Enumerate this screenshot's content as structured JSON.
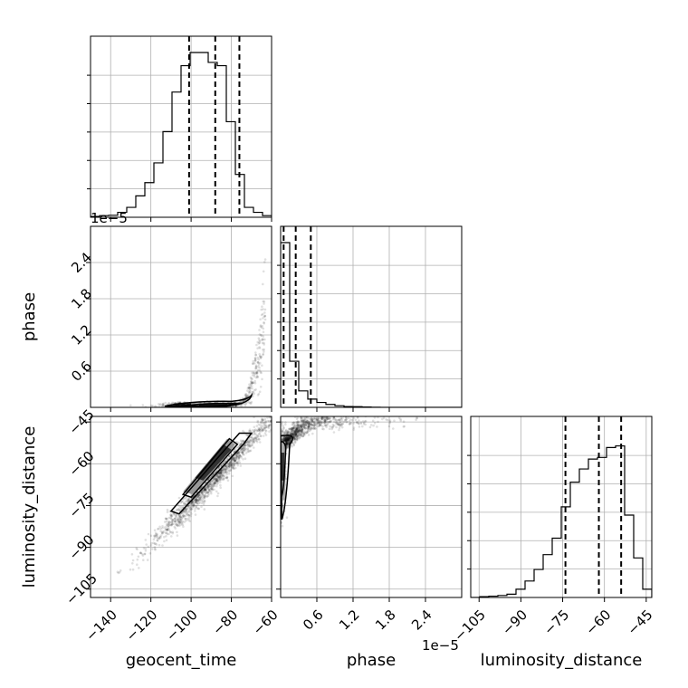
{
  "chart_data": {
    "type": "corner",
    "grid": true,
    "parameters": [
      "geocent_time",
      "phase",
      "luminosity_distance"
    ],
    "axes": {
      "geocent_time": {
        "label": "geocent_time",
        "range": [
          -150,
          -60
        ],
        "ticks": [
          -140,
          -120,
          -100,
          -80,
          -60
        ],
        "tick_labels": [
          "−140",
          "−120",
          "−100",
          "−80",
          "−60"
        ],
        "quantiles": [
          -101,
          -88,
          -76
        ]
      },
      "phase": {
        "label": "phase",
        "offset_text": "1e−5",
        "range": [
          0,
          3.0
        ],
        "ticks": [
          0.6,
          1.2,
          1.8,
          2.4
        ],
        "tick_labels": [
          "0.6",
          "1.2",
          "1.8",
          "2.4"
        ],
        "quantiles": [
          0.05,
          0.25,
          0.5
        ]
      },
      "luminosity_distance": {
        "label": "luminosity_distance",
        "range": [
          -108,
          -43
        ],
        "ticks": [
          -105,
          -90,
          -75,
          -60,
          -45
        ],
        "tick_labels": [
          "−105",
          "−90",
          "−75",
          "−60",
          "−45"
        ],
        "quantiles": [
          -74,
          -62,
          -54
        ]
      }
    },
    "histograms": {
      "geocent_time": {
        "bin_edges": [
          -150,
          -145.5,
          -141,
          -136.5,
          -132,
          -127.5,
          -123,
          -118.5,
          -114,
          -109.5,
          -105,
          -100.5,
          -96,
          -91.5,
          -87,
          -82.5,
          -78,
          -73.5,
          -69,
          -64.5,
          -60
        ],
        "counts": [
          0.005,
          0.01,
          0.012,
          0.03,
          0.06,
          0.13,
          0.21,
          0.33,
          0.52,
          0.76,
          0.92,
          1.0,
          1.0,
          0.94,
          0.92,
          0.58,
          0.26,
          0.06,
          0.03,
          0.01
        ]
      },
      "phase": {
        "bin_edges": [
          0,
          0.15,
          0.3,
          0.45,
          0.6,
          0.75,
          0.9,
          1.05,
          1.2,
          1.35,
          1.5,
          1.65,
          1.8,
          1.95,
          2.1,
          2.25,
          2.4,
          2.55,
          2.7,
          2.85,
          3.0
        ],
        "counts": [
          1.0,
          0.28,
          0.1,
          0.05,
          0.03,
          0.018,
          0.01,
          0.005,
          0.004,
          0.002,
          0.001,
          0,
          0,
          0,
          0,
          0,
          0,
          0,
          0,
          0
        ]
      },
      "luminosity_distance": {
        "bin_edges": [
          -108,
          -104.75,
          -101.5,
          -98.25,
          -95,
          -91.75,
          -88.5,
          -85.25,
          -82,
          -78.75,
          -75.5,
          -72.25,
          -69,
          -65.75,
          -62.5,
          -59.25,
          -56,
          -52.75,
          -49.5,
          -46.25,
          -43
        ],
        "counts": [
          0,
          0.005,
          0.008,
          0.012,
          0.02,
          0.05,
          0.1,
          0.17,
          0.26,
          0.36,
          0.55,
          0.7,
          0.78,
          0.84,
          0.85,
          0.91,
          0.92,
          0.5,
          0.24,
          0.05
        ]
      }
    },
    "scatter": {
      "phase_vs_geocent_time": {
        "description_points": [
          [
            -110,
            0.02
          ],
          [
            -100,
            0.03
          ],
          [
            -90,
            0.04
          ],
          [
            -80,
            0.08
          ],
          [
            -75,
            0.15
          ],
          [
            -70,
            0.35
          ],
          [
            -67,
            0.7
          ],
          [
            -65,
            1.1
          ],
          [
            -63,
            1.6
          ],
          [
            -61,
            2.2
          ]
        ],
        "dense_region": {
          "x": [
            -105,
            -75
          ],
          "y": [
            0,
            0.1
          ]
        }
      },
      "luminosity_distance_vs_geocent_time": {
        "description_points": [
          [
            -140,
            -103
          ],
          [
            -130,
            -96
          ],
          [
            -120,
            -88
          ],
          [
            -110,
            -80
          ],
          [
            -100,
            -71
          ],
          [
            -90,
            -63
          ],
          [
            -80,
            -56
          ],
          [
            -70,
            -49
          ],
          [
            -62,
            -45
          ]
        ]
      },
      "luminosity_distance_vs_phase": {
        "description_points": [
          [
            0.02,
            -100
          ],
          [
            0.03,
            -75
          ],
          [
            0.05,
            -60
          ],
          [
            0.2,
            -52
          ],
          [
            0.6,
            -49
          ],
          [
            1.2,
            -47
          ],
          [
            1.8,
            -46
          ],
          [
            2.4,
            -45
          ]
        ]
      }
    },
    "series": [
      {
        "name": "geocent_time",
        "values": [
          -101,
          -88,
          -76
        ]
      },
      {
        "name": "phase",
        "values": [
          0.05,
          0.25,
          0.5
        ]
      },
      {
        "name": "luminosity_distance",
        "values": [
          -74,
          -62,
          -54
        ]
      }
    ],
    "colors": {
      "primary": "#000000",
      "grid": "#b0b0b0"
    }
  }
}
